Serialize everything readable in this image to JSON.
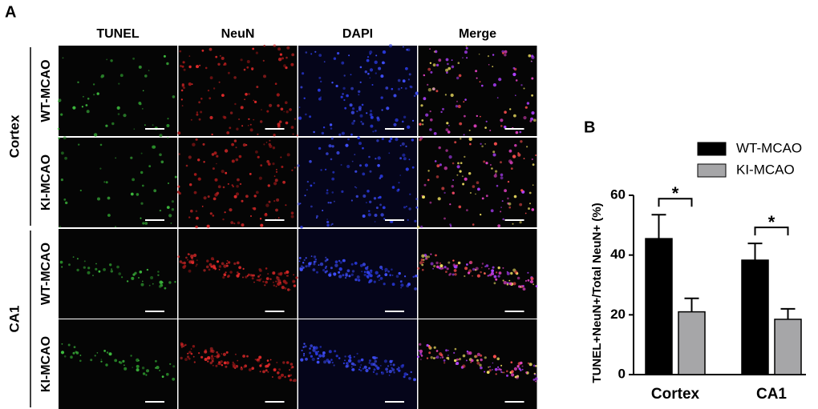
{
  "panel_a": {
    "label": "A",
    "columns": [
      "TUNEL",
      "NeuN",
      "DAPI",
      "Merge"
    ],
    "groups": [
      {
        "name": "Cortex",
        "rows": [
          "WT-MCAO",
          "KI-MCAO"
        ]
      },
      {
        "name": "CA1",
        "rows": [
          "WT-MCAO",
          "KI-MCAO"
        ]
      }
    ]
  },
  "chart_data": {
    "type": "bar",
    "panel_label": "B",
    "ylabel": "TUNEL+NeuN+/Total NeuN+ (%)",
    "categories": [
      "Cortex",
      "CA1"
    ],
    "series": [
      {
        "name": "WT-MCAO",
        "color": "#000000",
        "values": [
          45.5,
          38.3
        ],
        "errors": [
          8,
          5.6
        ]
      },
      {
        "name": "KI-MCAO",
        "color": "#a6a6a8",
        "values": [
          21,
          18.5
        ],
        "errors": [
          4.5,
          3.5
        ]
      }
    ],
    "annotations": [
      "*",
      "*"
    ],
    "ylim": [
      0,
      60
    ],
    "yticks": [
      0,
      20,
      40,
      60
    ],
    "legend": "upper right"
  }
}
